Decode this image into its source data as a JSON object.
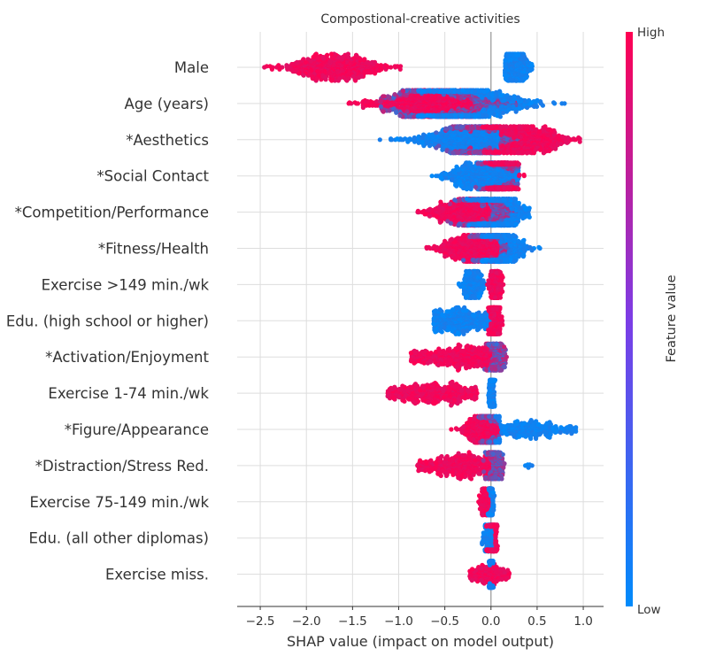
{
  "chart_data": {
    "type": "scatter",
    "subtype": "shap-beeswarm-summary",
    "title": "Compostional-creative activities",
    "xlabel": "SHAP value (impact on model output)",
    "xlim": [
      -2.75,
      1.22
    ],
    "xticks": [
      -2.5,
      -2.0,
      -1.5,
      -1.0,
      -0.5,
      0.0,
      0.5,
      1.0
    ],
    "xtick_labels": [
      "−2.5",
      "−2.0",
      "−1.5",
      "−1.0",
      "−0.5",
      "0.0",
      "0.5",
      "1.0"
    ],
    "grid": true,
    "colorbar": {
      "label": "Feature value",
      "high_label": "High",
      "low_label": "Low",
      "low_color": "#008bfb",
      "high_color": "#ff0052"
    },
    "features": [
      {
        "name": "Male",
        "groups": [
          {
            "value": "high",
            "min": -2.5,
            "max": -0.95,
            "center": -1.7,
            "sd": 0.28,
            "n": 600,
            "mode": "full"
          },
          {
            "value": "low",
            "min": 0.15,
            "max": 0.45,
            "center": 0.27,
            "sd": 0.07,
            "n": 420,
            "mode": "full"
          }
        ]
      },
      {
        "name": "Age (years)",
        "groups": [
          {
            "value": "high",
            "min": -1.85,
            "max": -0.2,
            "center": -0.7,
            "sd": 0.3,
            "n": 650,
            "mode": "full"
          },
          {
            "value": "mid",
            "min": -1.2,
            "max": 0.3,
            "center": -0.45,
            "sd": 0.33,
            "n": 750,
            "mode": "full"
          },
          {
            "value": "low",
            "min": -0.8,
            "max": 1.05,
            "center": -0.15,
            "sd": 0.3,
            "n": 500,
            "mode": "full"
          }
        ]
      },
      {
        "name": "*Aesthetics",
        "groups": [
          {
            "value": "low",
            "min": -1.35,
            "max": 0.1,
            "center": -0.25,
            "sd": 0.3,
            "n": 650,
            "mode": "full"
          },
          {
            "value": "mid",
            "min": -0.6,
            "max": 0.5,
            "center": -0.1,
            "sd": 0.18,
            "n": 450,
            "mode": "full"
          },
          {
            "value": "high",
            "min": -0.1,
            "max": 1.0,
            "center": 0.4,
            "sd": 0.22,
            "n": 600,
            "mode": "full"
          }
        ]
      },
      {
        "name": "*Social Contact",
        "groups": [
          {
            "value": "low",
            "min": -0.88,
            "max": 0.3,
            "center": -0.1,
            "sd": 0.2,
            "n": 550,
            "mode": "full"
          },
          {
            "value": "mid",
            "min": -0.3,
            "max": 0.3,
            "center": 0.1,
            "sd": 0.09,
            "n": 450,
            "mode": "full"
          },
          {
            "value": "high",
            "min": -0.2,
            "max": 0.45,
            "center": 0.13,
            "sd": 0.08,
            "n": 400,
            "mode": "full"
          }
        ]
      },
      {
        "name": "*Competition/Performance",
        "groups": [
          {
            "value": "high",
            "min": -0.8,
            "max": 0.0,
            "center": -0.3,
            "sd": 0.2,
            "n": 500,
            "mode": "full"
          },
          {
            "value": "mid",
            "min": -0.5,
            "max": 0.35,
            "center": -0.05,
            "sd": 0.15,
            "n": 500,
            "mode": "full"
          },
          {
            "value": "low",
            "min": -1.0,
            "max": 0.42,
            "center": 0.1,
            "sd": 0.14,
            "n": 500,
            "mode": "full"
          }
        ]
      },
      {
        "name": "*Fitness/Health",
        "groups": [
          {
            "value": "high",
            "min": -0.7,
            "max": 0.1,
            "center": -0.2,
            "sd": 0.18,
            "n": 500,
            "mode": "full"
          },
          {
            "value": "mid",
            "min": -0.3,
            "max": 0.2,
            "center": -0.02,
            "sd": 0.09,
            "n": 350,
            "mode": "full"
          },
          {
            "value": "low",
            "min": -0.1,
            "max": 0.6,
            "center": 0.12,
            "sd": 0.12,
            "n": 400,
            "mode": "full"
          }
        ]
      },
      {
        "name": "Exercise >149 min./wk",
        "groups": [
          {
            "value": "low",
            "min": -0.35,
            "max": -0.05,
            "center": -0.2,
            "sd": 0.06,
            "n": 300,
            "mode": "full"
          },
          {
            "value": "high",
            "min": -0.05,
            "max": 0.15,
            "center": 0.05,
            "sd": 0.03,
            "n": 300,
            "mode": "full"
          }
        ]
      },
      {
        "name": "Edu. (high school or higher)",
        "groups": [
          {
            "value": "low",
            "min": -0.63,
            "max": 0.0,
            "center": -0.35,
            "sd": 0.15,
            "n": 400,
            "mode": "uniform"
          },
          {
            "value": "high",
            "min": -0.03,
            "max": 0.18,
            "center": 0.04,
            "sd": 0.03,
            "n": 380,
            "mode": "full"
          }
        ]
      },
      {
        "name": "*Activation/Enjoyment",
        "groups": [
          {
            "value": "high",
            "min": -0.87,
            "max": 0.0,
            "center": -0.2,
            "sd": 0.25,
            "n": 450,
            "mode": "uniform"
          },
          {
            "value": "mid",
            "min": -0.1,
            "max": 0.22,
            "center": 0.06,
            "sd": 0.04,
            "n": 350,
            "mode": "full"
          }
        ]
      },
      {
        "name": "Exercise 1-74 min./wk",
        "groups": [
          {
            "value": "high",
            "min": -1.12,
            "max": -0.15,
            "center": -0.6,
            "sd": 0.2,
            "n": 420,
            "mode": "uniform"
          },
          {
            "value": "low",
            "min": -0.03,
            "max": 0.06,
            "center": 0.01,
            "sd": 0.015,
            "n": 300,
            "mode": "full"
          }
        ]
      },
      {
        "name": "*Figure/Appearance",
        "groups": [
          {
            "value": "high",
            "min": -0.47,
            "max": 0.1,
            "center": -0.1,
            "sd": 0.1,
            "n": 350,
            "mode": "full"
          },
          {
            "value": "mid",
            "min": -0.15,
            "max": 0.1,
            "center": -0.02,
            "sd": 0.04,
            "n": 300,
            "mode": "full"
          },
          {
            "value": "low",
            "min": 0.05,
            "max": 0.92,
            "center": 0.3,
            "sd": 0.2,
            "n": 280,
            "mode": "uniform"
          }
        ]
      },
      {
        "name": "*Distraction/Stress Red.",
        "groups": [
          {
            "value": "high",
            "min": -0.8,
            "max": 0.0,
            "center": -0.25,
            "sd": 0.2,
            "n": 420,
            "mode": "uniform"
          },
          {
            "value": "mid",
            "min": -0.1,
            "max": 0.25,
            "center": 0.05,
            "sd": 0.04,
            "n": 320,
            "mode": "full"
          },
          {
            "value": "low",
            "min": 0.35,
            "max": 0.45,
            "center": 0.4,
            "sd": 0.03,
            "n": 6,
            "mode": "full"
          }
        ]
      },
      {
        "name": "Exercise 75-149 min./wk",
        "groups": [
          {
            "value": "high",
            "min": -0.15,
            "max": 0.0,
            "center": -0.05,
            "sd": 0.04,
            "n": 160,
            "mode": "full"
          },
          {
            "value": "low",
            "min": -0.04,
            "max": 0.04,
            "center": 0.0,
            "sd": 0.012,
            "n": 260,
            "mode": "full"
          }
        ]
      },
      {
        "name": "Edu. (all other diplomas)",
        "groups": [
          {
            "value": "low",
            "min": -0.1,
            "max": 0.05,
            "center": -0.02,
            "sd": 0.03,
            "n": 220,
            "mode": "full"
          },
          {
            "value": "high",
            "min": -0.05,
            "max": 0.08,
            "center": 0.02,
            "sd": 0.03,
            "n": 160,
            "mode": "full"
          }
        ]
      },
      {
        "name": "Exercise miss.",
        "groups": [
          {
            "value": "high",
            "min": -0.23,
            "max": 0.2,
            "center": 0.0,
            "sd": 0.08,
            "n": 200,
            "mode": "uniform"
          },
          {
            "value": "low",
            "min": -0.03,
            "max": 0.03,
            "center": 0.0,
            "sd": 0.01,
            "n": 280,
            "mode": "full"
          }
        ]
      }
    ]
  }
}
